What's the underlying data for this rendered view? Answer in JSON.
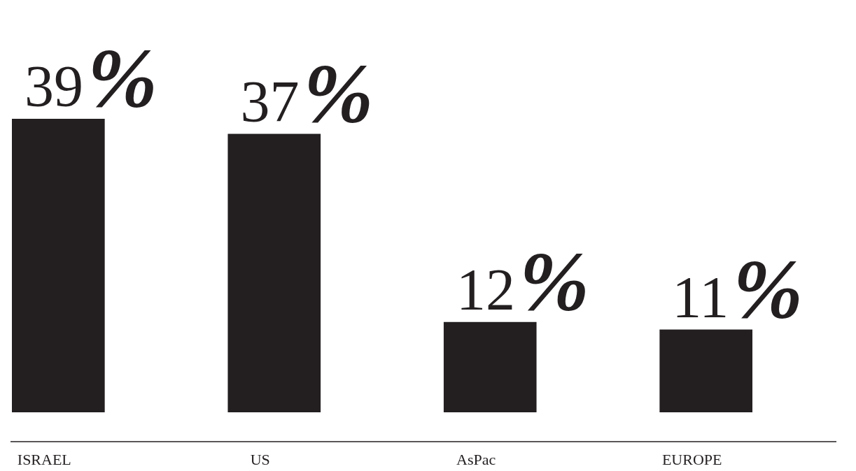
{
  "chart_data": {
    "type": "bar",
    "categories": [
      "ISRAEL",
      "US",
      "AsPac",
      "EUROPE"
    ],
    "values": [
      39,
      37,
      12,
      11
    ],
    "value_labels": [
      "39%",
      "37%",
      "12%",
      "11%"
    ],
    "color": "#231f20",
    "tick_labels": "x"
  }
}
